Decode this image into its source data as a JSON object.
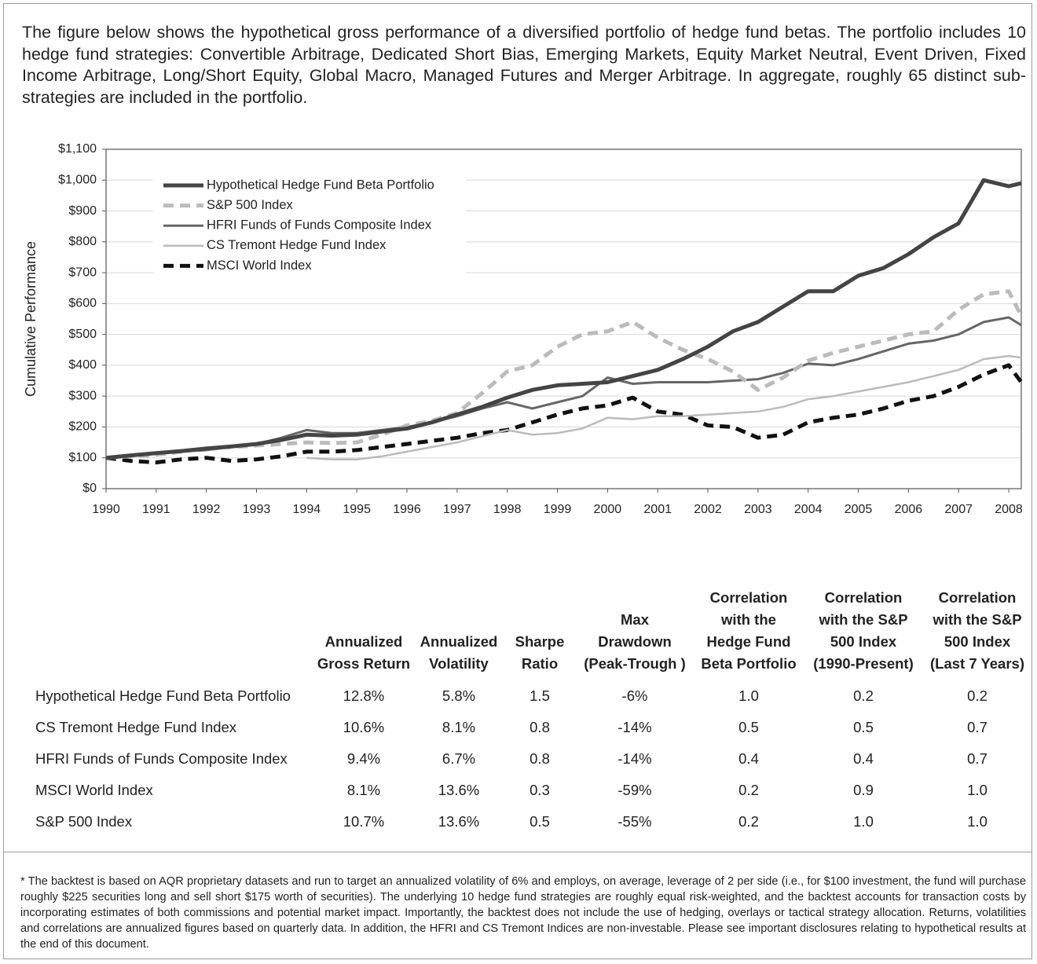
{
  "intro": "The figure below shows the hypothetical gross performance of a diversified portfolio of hedge fund betas. The portfolio includes 10 hedge fund strategies: Convertible Arbitrage, Dedicated Short Bias, Emerging Markets, Equity Market Neutral, Event Driven, Fixed Income Arbitrage, Long/Short Equity, Global Macro, Managed Futures and Merger Arbitrage. In aggregate, roughly 65 distinct sub-strategies are included in the portfolio.",
  "chart_data": {
    "type": "line",
    "y_label": "Cumulative Performance",
    "grid": true,
    "legend": "upper left",
    "x": [
      1990,
      1990.5,
      1991,
      1991.5,
      1992,
      1992.5,
      1993,
      1993.5,
      1994,
      1994.5,
      1995,
      1995.5,
      1996,
      1996.5,
      1997,
      1997.5,
      1998,
      1998.5,
      1999,
      1999.5,
      2000,
      2000.5,
      2001,
      2001.5,
      2002,
      2002.5,
      2003,
      2003.5,
      2004,
      2004.5,
      2005,
      2005.5,
      2006,
      2006.5,
      2007,
      2007.5,
      2008,
      2008.25
    ],
    "xlim": [
      1990,
      2008.25
    ],
    "xticks": [
      1990,
      1991,
      1992,
      1993,
      1994,
      1995,
      1996,
      1997,
      1998,
      1999,
      2000,
      2001,
      2002,
      2003,
      2004,
      2005,
      2006,
      2007,
      2008
    ],
    "ylim": [
      0,
      1100
    ],
    "yticks": [
      {
        "value": 0,
        "label": "$0"
      },
      {
        "value": 100,
        "label": "$100"
      },
      {
        "value": 200,
        "label": "$200"
      },
      {
        "value": 300,
        "label": "$300"
      },
      {
        "value": 400,
        "label": "$400"
      },
      {
        "value": 500,
        "label": "$500"
      },
      {
        "value": 600,
        "label": "$600"
      },
      {
        "value": 700,
        "label": "$700"
      },
      {
        "value": 800,
        "label": "$800"
      },
      {
        "value": 900,
        "label": "$900"
      },
      {
        "value": 1000,
        "label": "$1,000"
      },
      {
        "value": 1100,
        "label": "$1,100"
      }
    ],
    "series": [
      {
        "name": "Hypothetical Hedge Fund Beta Portfolio",
        "color": "#444444",
        "width": 5,
        "dash": "solid",
        "values": [
          100,
          108,
          115,
          122,
          130,
          137,
          145,
          158,
          175,
          172,
          175,
          185,
          195,
          215,
          240,
          265,
          295,
          320,
          335,
          340,
          345,
          365,
          385,
          420,
          460,
          510,
          540,
          590,
          640,
          640,
          690,
          715,
          760,
          815,
          860,
          1000,
          980,
          990
        ]
      },
      {
        "name": "S&P 500 Index",
        "color": "#bbbbbb",
        "width": 5,
        "dash": "dashed",
        "values": [
          100,
          105,
          110,
          120,
          130,
          135,
          140,
          145,
          150,
          148,
          150,
          175,
          205,
          220,
          245,
          310,
          380,
          400,
          460,
          500,
          510,
          540,
          490,
          450,
          420,
          380,
          320,
          360,
          415,
          440,
          460,
          480,
          500,
          510,
          580,
          630,
          640,
          560
        ]
      },
      {
        "name": "HFRI Funds of Funds Composite Index",
        "color": "#666666",
        "width": 3,
        "dash": "solid",
        "values": [
          100,
          108,
          115,
          120,
          125,
          135,
          145,
          165,
          190,
          180,
          180,
          190,
          200,
          215,
          235,
          260,
          280,
          260,
          280,
          300,
          360,
          340,
          345,
          345,
          345,
          350,
          355,
          375,
          405,
          400,
          420,
          445,
          470,
          480,
          500,
          540,
          555,
          530
        ]
      },
      {
        "name": "CS Tremont Hedge Fund Index",
        "color": "#bbbbbb",
        "width": 2.5,
        "dash": "solid",
        "values": [
          null,
          null,
          null,
          null,
          null,
          null,
          null,
          null,
          100,
          95,
          95,
          105,
          120,
          135,
          150,
          170,
          190,
          175,
          180,
          195,
          230,
          225,
          235,
          235,
          240,
          245,
          250,
          265,
          290,
          300,
          315,
          330,
          345,
          365,
          385,
          420,
          430,
          425
        ]
      },
      {
        "name": "MSCI World Index",
        "color": "#111111",
        "width": 5,
        "dash": "dashed",
        "values": [
          100,
          90,
          85,
          95,
          100,
          90,
          95,
          105,
          120,
          120,
          125,
          135,
          145,
          155,
          165,
          180,
          190,
          215,
          240,
          260,
          270,
          295,
          250,
          240,
          205,
          200,
          165,
          175,
          215,
          230,
          240,
          260,
          285,
          300,
          330,
          370,
          400,
          345
        ]
      }
    ]
  },
  "table": {
    "headers": [
      [
        "Annualized",
        "Gross Return"
      ],
      [
        "Annualized",
        "Volatility"
      ],
      [
        "Sharpe",
        "Ratio"
      ],
      [
        "Max",
        "Drawdown",
        "(Peak-Trough )"
      ],
      [
        "Correlation",
        "with the",
        "Hedge Fund",
        "Beta Portfolio"
      ],
      [
        "Correlation",
        "with the S&P",
        "500 Index",
        "(1990-Present)"
      ],
      [
        "Correlation",
        "with the S&P",
        "500 Index",
        "(Last 7 Years)"
      ]
    ],
    "rows": [
      [
        "Hypothetical Hedge Fund Beta Portfolio",
        "12.8%",
        "5.8%",
        "1.5",
        "-6%",
        "1.0",
        "0.2",
        "0.2"
      ],
      [
        "CS Tremont Hedge Fund Index",
        "10.6%",
        "8.1%",
        "0.8",
        "-14%",
        "0.5",
        "0.5",
        "0.7"
      ],
      [
        "HFRI Funds of Funds Composite Index",
        "9.4%",
        "6.7%",
        "0.8",
        "-14%",
        "0.4",
        "0.4",
        "0.7"
      ],
      [
        "MSCI World Index",
        "8.1%",
        "13.6%",
        "0.3",
        "-59%",
        "0.2",
        "0.9",
        "1.0"
      ],
      [
        "S&P 500 Index",
        "10.7%",
        "13.6%",
        "0.5",
        "-55%",
        "0.2",
        "1.0",
        "1.0"
      ]
    ]
  },
  "footnote": "* The backtest is based on AQR proprietary datasets and run to target an annualized volatility of 6% and employs, on average, leverage of 2 per side (i.e., for $100 investment, the fund will purchase roughly $225 securities long and sell short $175 worth of securities). The underlying 10 hedge fund strategies are roughly equal risk-weighted, and the backtest accounts for transaction costs by incorporating estimates of both commissions and potential market impact. Importantly, the backtest does not include the use of hedging, overlays or tactical strategy allocation. Returns, volatilities and correlations are annualized figures based on quarterly data. In addition, the HFRI and CS Tremont Indices are non-investable. Please see important disclosures relating to hypothetical results at the end of this document."
}
